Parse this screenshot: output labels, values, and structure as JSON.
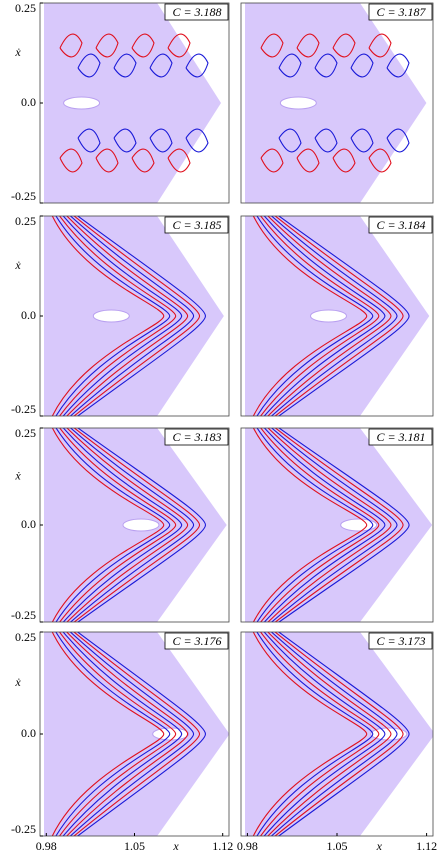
{
  "chart_data": [
    {
      "type": "scatter",
      "title": "C = 3.188",
      "ylabel": "ẋ",
      "ylim": [
        -0.25,
        0.25
      ],
      "yticks": [
        0.25,
        {
          "value": 0,
          "label": "0.0"
        },
        -0.25
      ],
      "xlim": [
        0.975,
        1.125
      ]
    },
    {
      "type": "scatter",
      "title": "C = 3.187",
      "ylim": [
        -0.25,
        0.25
      ],
      "xlim": [
        0.975,
        1.125
      ]
    },
    {
      "type": "scatter",
      "title": "C = 3.185",
      "ylabel": "ẋ",
      "ylim": [
        -0.25,
        0.25
      ],
      "yticks": [
        0.25,
        {
          "value": 0,
          "label": "0.0"
        },
        -0.25
      ],
      "xlim": [
        0.975,
        1.125
      ]
    },
    {
      "type": "scatter",
      "title": "C = 3.184",
      "ylim": [
        -0.25,
        0.25
      ],
      "xlim": [
        0.975,
        1.125
      ]
    },
    {
      "type": "scatter",
      "title": "C = 3.183",
      "ylabel": "ẋ",
      "ylim": [
        -0.25,
        0.25
      ],
      "yticks": [
        0.25,
        {
          "value": 0,
          "label": "0.0"
        },
        -0.25
      ],
      "xlim": [
        0.975,
        1.125
      ]
    },
    {
      "type": "scatter",
      "title": "C = 3.181",
      "ylim": [
        -0.25,
        0.25
      ],
      "xlim": [
        0.975,
        1.125
      ]
    },
    {
      "type": "scatter",
      "title": "C = 3.176",
      "ylabel": "ẋ",
      "xlabel": "x",
      "ylim": [
        -0.25,
        0.25
      ],
      "yticks": [
        0.25,
        {
          "value": 0,
          "label": "0.0"
        },
        -0.25
      ],
      "xlim": [
        0.975,
        1.125
      ],
      "xticks": [
        0.98,
        1.05,
        1.12
      ]
    },
    {
      "type": "scatter",
      "title": "C = 3.173",
      "xlabel": "x",
      "ylim": [
        -0.25,
        0.25
      ],
      "xlim": [
        0.975,
        1.125
      ],
      "xticks": [
        0.98,
        1.05,
        1.12
      ]
    }
  ]
}
